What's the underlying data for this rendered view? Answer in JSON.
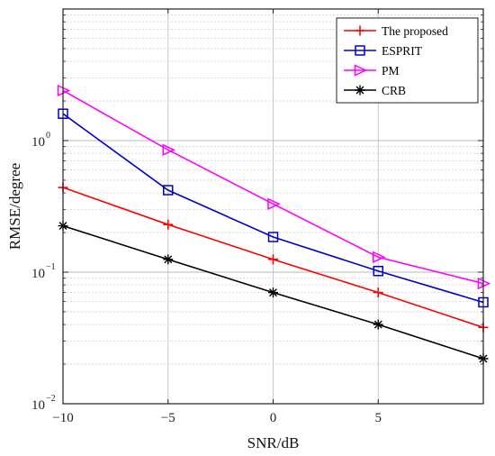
{
  "chart_data": {
    "type": "line",
    "title": "",
    "xlabel": "SNR/dB",
    "ylabel": "RMSE/degree",
    "xlim": [
      -10,
      10
    ],
    "ylim": [
      0.01,
      10
    ],
    "yscale": "log",
    "xticks": [
      -10,
      -5,
      0,
      5
    ],
    "xtick_labels": [
      "−10",
      "−5",
      "0",
      "5"
    ],
    "yticks": [
      0.01,
      0.1,
      1
    ],
    "ytick_labels": [
      {
        "base": "10",
        "exp": "−2"
      },
      {
        "base": "10",
        "exp": "−1"
      },
      {
        "base": "10",
        "exp": "0"
      }
    ],
    "grid": true,
    "minor_grid": true,
    "legend_position": "top-right",
    "x": [
      -10,
      -5,
      0,
      5,
      10
    ],
    "series": [
      {
        "name": "The proposed",
        "color": "#ff0000",
        "marker": "plus",
        "values": [
          0.44,
          0.23,
          0.125,
          0.07,
          0.038
        ]
      },
      {
        "name": "ESPRIT",
        "color": "#0000cc",
        "marker": "square",
        "values": [
          1.6,
          0.42,
          0.185,
          0.102,
          0.059
        ]
      },
      {
        "name": "PM",
        "color": "#ff00ff",
        "marker": "triangle-right",
        "values": [
          2.4,
          0.85,
          0.33,
          0.13,
          0.082
        ]
      },
      {
        "name": "CRB",
        "color": "#000000",
        "marker": "asterisk",
        "values": [
          0.225,
          0.125,
          0.07,
          0.04,
          0.022
        ]
      }
    ]
  }
}
